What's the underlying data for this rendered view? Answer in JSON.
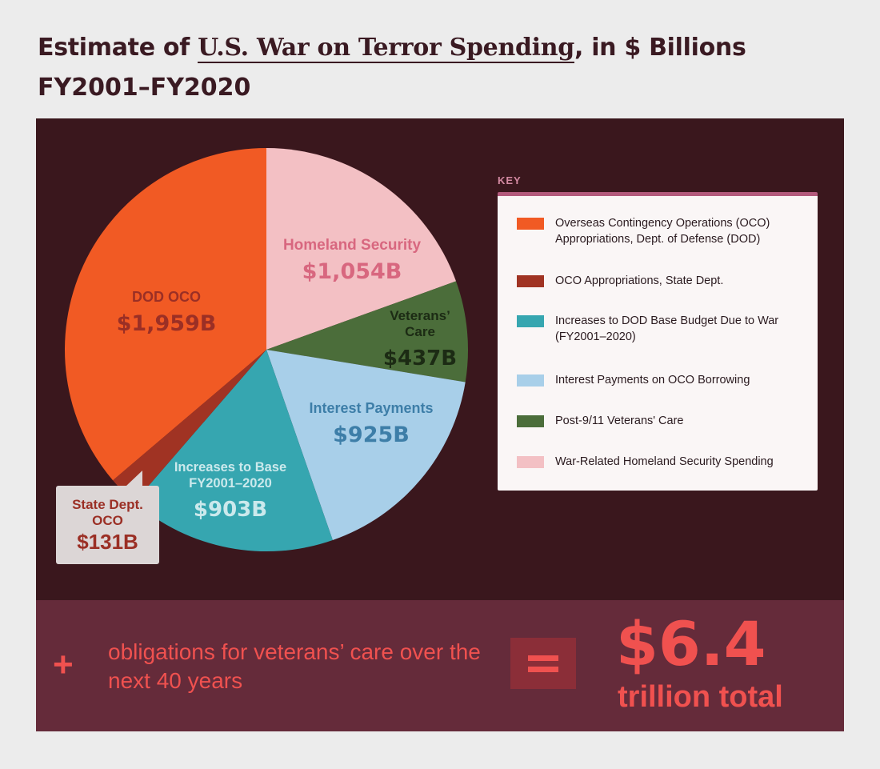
{
  "header": {
    "title_prefix": "Estimate of ",
    "title_link": "U.S. War on Terror Spending",
    "title_suffix": ", in $ Billions",
    "subtitle": "FY2001–FY2020"
  },
  "key": {
    "label": "KEY",
    "items": [
      {
        "color": "#f15a24",
        "text": "Overseas Contingency Operations (OCO) Appropriations, Dept. of Defense (DOD)"
      },
      {
        "color": "#a03323",
        "text": "OCO Appropriations, State Dept."
      },
      {
        "color": "#36a6b0",
        "text": "Increases to DOD Base Budget Due to War (FY2001–2020)"
      },
      {
        "color": "#a8cfe9",
        "text": "Interest Payments on OCO Borrowing"
      },
      {
        "color": "#4b6d3a",
        "text": "Post-9/11 Veterans' Care"
      },
      {
        "color": "#f3c0c4",
        "text": "War-Related Homeland Security Spending"
      }
    ]
  },
  "bottom": {
    "plus": "+",
    "obligations": "obligations for veterans’ care over the next 40 years",
    "equals": "=",
    "total": "$6.4",
    "total_unit": "trillion total"
  },
  "chart_data": {
    "type": "pie",
    "slices": [
      {
        "name": "Homeland Security",
        "value": 1054,
        "label": "$1,054B",
        "color": "#f3c0c4",
        "text_color": "#d8677f"
      },
      {
        "name": "Veterans’ Care",
        "value": 437,
        "label": "$437B",
        "color": "#4b6d3a",
        "text_color": "#1c2b14"
      },
      {
        "name": "Interest Payments",
        "value": 925,
        "label": "$925B",
        "color": "#a8cfe9",
        "text_color": "#3d7ea8"
      },
      {
        "name": "Increases to Base FY2001–2020",
        "value": 903,
        "label": "$903B",
        "color": "#36a6b0",
        "text_color": "#cbe9ec"
      },
      {
        "name": "State Dept. OCO",
        "value": 131,
        "label": "$131B",
        "color": "#a03323",
        "text_color": "#9b2f25"
      },
      {
        "name": "DOD OCO",
        "value": 1959,
        "label": "$1,959B",
        "color": "#f15a24",
        "text_color": "#9b2f25"
      }
    ]
  }
}
